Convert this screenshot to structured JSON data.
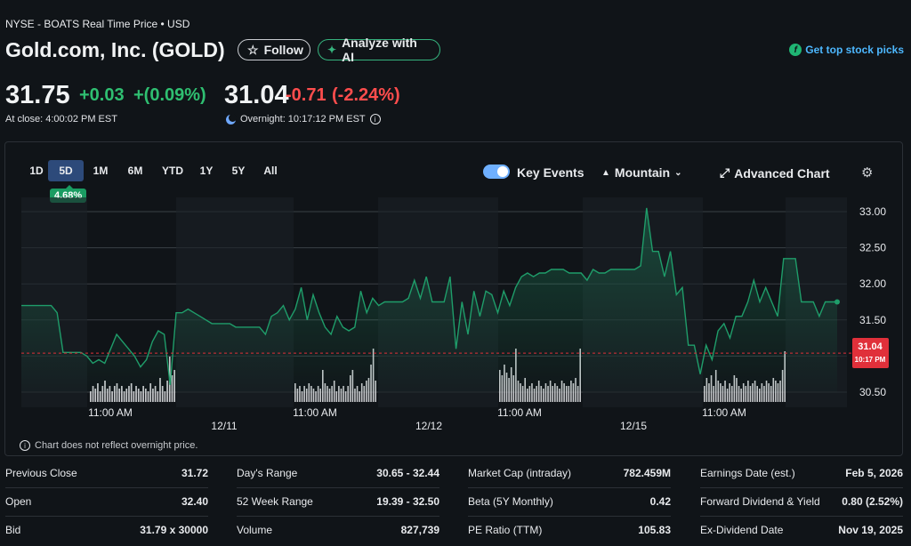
{
  "header": {
    "exchange_line": "NYSE - BOATS Real Time Price • USD",
    "title": "Gold.com, Inc. (GOLD)",
    "follow_label": "Follow",
    "analyze_label": "Analyze with AI",
    "picks_label": "Get top stock picks"
  },
  "quote": {
    "price": "31.75",
    "change": "+0.03",
    "change_pct": "+(0.09%)",
    "close_label": "At close: 4:00:02 PM EST",
    "overnight_price": "31.04",
    "overnight_change": "-0.71",
    "overnight_change_pct": "(-2.24%)",
    "overnight_label": "Overnight: 10:17:12 PM EST"
  },
  "chart_controls": {
    "ranges": [
      "1D",
      "5D",
      "1M",
      "6M",
      "YTD",
      "1Y",
      "5Y",
      "All"
    ],
    "active_range": "5D",
    "performance_badge": "4.68%",
    "key_events_label": "Key Events",
    "chart_type_label": "Mountain",
    "advanced_label": "Advanced Chart",
    "footnote": "Chart does not reflect overnight price."
  },
  "chart_data": {
    "type": "area",
    "y_ticks": [
      "33.00",
      "32.50",
      "32.00",
      "31.50",
      "30.50"
    ],
    "ylim": [
      30.35,
      33.15
    ],
    "x_time_labels": [
      "11:00 AM",
      "11:00 AM",
      "11:00 AM",
      "11:00 AM"
    ],
    "x_date_labels": [
      "12/11",
      "12/12",
      "12/15"
    ],
    "current_marker": {
      "price": "31.04",
      "time": "10:17 PM",
      "value": 31.04
    },
    "line_color": "#1f9d6a",
    "series": [
      {
        "values": [
          31.7,
          31.7,
          31.7,
          31.7,
          31.7,
          31.7,
          31.6,
          31.05,
          31.05,
          31.05,
          31.05,
          31.0,
          30.9,
          30.95,
          30.9,
          31.1,
          31.3,
          31.2,
          31.1,
          31.0,
          30.85,
          30.95,
          31.2,
          31.35,
          31.3,
          30.6,
          31.6,
          31.6,
          31.65,
          31.6,
          31.55,
          31.5,
          31.45,
          31.45,
          31.45,
          31.45,
          31.4,
          31.4,
          31.4,
          31.4,
          31.4,
          31.3,
          31.55,
          31.6,
          31.7,
          31.5,
          31.65,
          31.95,
          31.5,
          31.85,
          31.6,
          31.4,
          31.3,
          31.55,
          31.4,
          31.35,
          31.4,
          31.9,
          31.6,
          31.8,
          31.7,
          31.75,
          31.75,
          31.75,
          31.75,
          31.8,
          32.05,
          31.8,
          32.1,
          31.75,
          31.75,
          31.75,
          32.1,
          31.1,
          31.75,
          31.3,
          31.9,
          31.55,
          31.9,
          31.85,
          31.6,
          31.9,
          31.7,
          31.95,
          32.1,
          32.15,
          32.1,
          32.15,
          32.15,
          32.2,
          32.2,
          32.2,
          32.15,
          32.15,
          32.15,
          32.05,
          32.2,
          32.15,
          32.15,
          32.2,
          32.2,
          32.2,
          32.2,
          32.2,
          32.25,
          33.05,
          32.45,
          32.45,
          32.1,
          32.45,
          31.85,
          31.95,
          31.15,
          31.15,
          30.75,
          31.15,
          30.95,
          31.35,
          31.45,
          31.25,
          31.55,
          31.55,
          31.75,
          32.05,
          31.75,
          31.95,
          31.75,
          31.55,
          32.35,
          32.35,
          32.35,
          31.75,
          31.75,
          31.75,
          31.55,
          31.75,
          31.75,
          31.75
        ]
      }
    ],
    "volume_bars": [
      {
        "segment": 1,
        "relative_heights": [
          0.2,
          0.3,
          0.25,
          0.35,
          0.2,
          0.3,
          0.4,
          0.25,
          0.3,
          0.2,
          0.3,
          0.35,
          0.25,
          0.3,
          0.2,
          0.25,
          0.3,
          0.35,
          0.2,
          0.3,
          0.25,
          0.2,
          0.3,
          0.25,
          0.2,
          0.35,
          0.25,
          0.3,
          0.2,
          0.45,
          0.3,
          0.2,
          0.4,
          0.85,
          0.5,
          0.6
        ]
      },
      {
        "segment": 2,
        "relative_heights": [
          0.35,
          0.25,
          0.3,
          0.2,
          0.3,
          0.25,
          0.35,
          0.3,
          0.25,
          0.2,
          0.3,
          0.25,
          0.6,
          0.35,
          0.3,
          0.25,
          0.3,
          0.4,
          0.2,
          0.3,
          0.25,
          0.3,
          0.2,
          0.3,
          0.5,
          0.6,
          0.25,
          0.3,
          0.2,
          0.35,
          0.3,
          0.4,
          0.45,
          0.7,
          1.0,
          0.4
        ]
      },
      {
        "segment": 3,
        "relative_heights": [
          0.6,
          0.5,
          0.7,
          0.55,
          0.45,
          0.65,
          0.5,
          1.0,
          0.4,
          0.35,
          0.3,
          0.45,
          0.25,
          0.3,
          0.35,
          0.25,
          0.3,
          0.4,
          0.3,
          0.25,
          0.35,
          0.3,
          0.4,
          0.3,
          0.35,
          0.3,
          0.25,
          0.4,
          0.35,
          0.3,
          0.3,
          0.4,
          0.35,
          0.45,
          0.3,
          1.0
        ]
      },
      {
        "segment": 4,
        "relative_heights": [
          0.3,
          0.45,
          0.35,
          0.5,
          0.3,
          0.6,
          0.4,
          0.35,
          0.3,
          0.4,
          0.25,
          0.35,
          0.3,
          0.5,
          0.45,
          0.3,
          0.25,
          0.35,
          0.3,
          0.4,
          0.3,
          0.35,
          0.4,
          0.3,
          0.25,
          0.35,
          0.3,
          0.4,
          0.35,
          0.3,
          0.45,
          0.4,
          0.35,
          0.4,
          0.6,
          0.95
        ]
      }
    ]
  },
  "stats": {
    "col1": [
      {
        "label": "Previous Close",
        "value": "31.72"
      },
      {
        "label": "Open",
        "value": "32.40"
      },
      {
        "label": "Bid",
        "value": "31.79 x 30000"
      }
    ],
    "col2": [
      {
        "label": "Day's Range",
        "value": "30.65 - 32.44"
      },
      {
        "label": "52 Week Range",
        "value": "19.39 - 32.50"
      },
      {
        "label": "Volume",
        "value": "827,739"
      }
    ],
    "col3": [
      {
        "label": "Market Cap (intraday)",
        "value": "782.459M"
      },
      {
        "label": "Beta (5Y Monthly)",
        "value": "0.42"
      },
      {
        "label": "PE Ratio (TTM)",
        "value": "105.83"
      }
    ],
    "col4": [
      {
        "label": "Earnings Date (est.)",
        "value": "Feb 5, 2026"
      },
      {
        "label": "Forward Dividend & Yield",
        "value": "0.80 (2.52%)"
      },
      {
        "label": "Ex-Dividend Date",
        "value": "Nov 19, 2025"
      }
    ]
  }
}
